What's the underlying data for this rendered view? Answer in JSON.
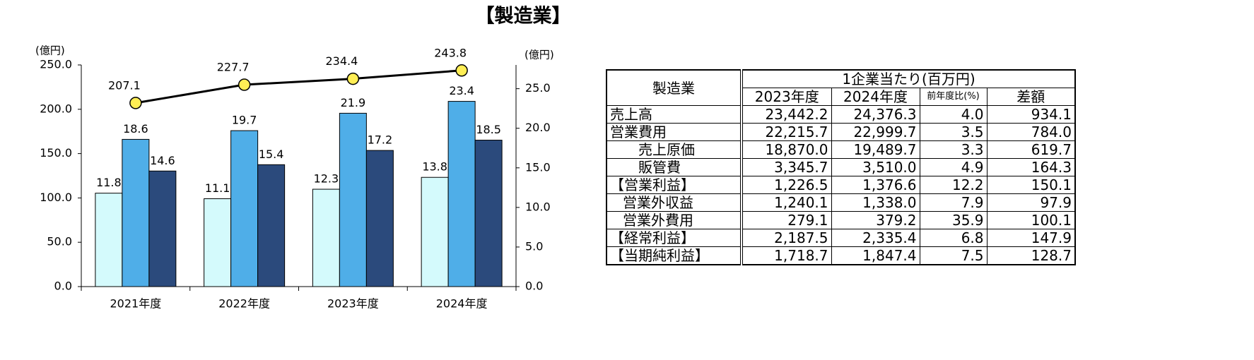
{
  "title": "【製造業】",
  "chart_data": {
    "type": "bar",
    "ylabel": "(億円)",
    "y2label": "(億円)",
    "categories": [
      "2021年度",
      "2022年度",
      "2023年度",
      "2024年度"
    ],
    "series": [
      {
        "color": "#d4fafc",
        "values": [
          11.8,
          11.1,
          12.3,
          13.8
        ],
        "axis": "y2"
      },
      {
        "color": "#4faee8",
        "values": [
          18.6,
          19.7,
          21.9,
          23.4
        ],
        "axis": "y2"
      },
      {
        "color": "#2b4a7c",
        "values": [
          14.6,
          15.4,
          17.2,
          18.5
        ],
        "axis": "y2"
      },
      {
        "type": "line",
        "color": "#000000",
        "marker_color": "#ffee55",
        "values": [
          207.1,
          227.7,
          234.4,
          243.8
        ]
      }
    ],
    "ylim": [
      0,
      250
    ],
    "yticks": [
      {
        "value": 0,
        "label": "0.0"
      },
      {
        "value": 50,
        "label": "50.0"
      },
      {
        "value": 100,
        "label": "100.0"
      },
      {
        "value": 150,
        "label": "150.0"
      },
      {
        "value": 200,
        "label": "200.0"
      },
      {
        "value": 250,
        "label": "250.0"
      }
    ],
    "y2lim": [
      0,
      28
    ],
    "y2ticks": [
      {
        "value": 0,
        "label": "0.0"
      },
      {
        "value": 5,
        "label": "5.0"
      },
      {
        "value": 10,
        "label": "10.0"
      },
      {
        "value": 15,
        "label": "15.0"
      },
      {
        "value": 20,
        "label": "20.0"
      },
      {
        "value": 25,
        "label": "25.0"
      }
    ]
  },
  "table": {
    "corner": "製造業",
    "group_header": "1企業当たり(百万円)",
    "columns": [
      "2023年度",
      "2024年度",
      "前年度比(%)",
      "差額"
    ],
    "rows": [
      [
        "売上高",
        "23,442.2",
        "24,376.3",
        "4.0",
        "934.1"
      ],
      [
        "営業費用",
        "22,215.7",
        "22,999.7",
        "3.5",
        "784.0"
      ],
      [
        "売上原価",
        "18,870.0",
        "19,489.7",
        "3.3",
        "619.7"
      ],
      [
        "販管費",
        "3,345.7",
        "3,510.0",
        "4.9",
        "164.3"
      ],
      [
        "【営業利益】",
        "1,226.5",
        "1,376.6",
        "12.2",
        "150.1"
      ],
      [
        "営業外収益",
        "1,240.1",
        "1,338.0",
        "7.9",
        "97.9"
      ],
      [
        "営業外費用",
        "279.1",
        "379.2",
        "35.9",
        "100.1"
      ],
      [
        "【経常利益】",
        "2,187.5",
        "2,335.4",
        "6.8",
        "147.9"
      ],
      [
        "【当期純利益】",
        "1,718.7",
        "1,847.4",
        "7.5",
        "128.7"
      ]
    ]
  }
}
